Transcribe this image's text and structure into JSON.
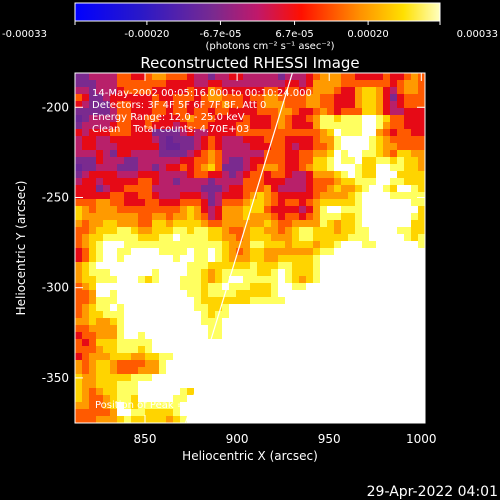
{
  "colorbar": {
    "tick_labels": [
      "-0.00033",
      "-0.00020",
      "-6.7e-05",
      "6.7e-05",
      "0.00020",
      "0.00033"
    ],
    "tick_values": [
      -0.00033,
      -0.0002,
      -6.7e-05,
      6.7e-05,
      0.0002,
      0.00033
    ],
    "range": [
      -0.00033,
      0.00033
    ],
    "units_label": "(photons cm⁻² s⁻¹ asec⁻²)"
  },
  "chart_data": {
    "type": "heatmap",
    "title": "Reconstructed RHESSI Image",
    "xlabel": "Heliocentric X (arcsec)",
    "ylabel": "Heliocentric Y (arcsec)",
    "xlim": [
      812,
      1002
    ],
    "ylim": [
      -375,
      -181
    ],
    "x_ticks": [
      850,
      900,
      950,
      1000
    ],
    "y_ticks": [
      -200,
      -250,
      -300,
      -350
    ],
    "limb_line": [
      [
        872,
        -375
      ],
      [
        930,
        -181
      ]
    ],
    "peak_position": [
      997,
      -335
    ],
    "colormap": [
      "#0028ff",
      "#2a16c8",
      "#4b1e9a",
      "#6a2596",
      "#7a2a8f",
      "#b8206a",
      "#e60a16",
      "#ff5a00",
      "#ff9a00",
      "#ffd400",
      "#ffff60",
      "#ffffff"
    ]
  },
  "annotations": {
    "line1": "14-May-2002 00:05:16.000 to 00:10:24.000",
    "line2": "Detectors: 3F 4F 5F 6F 7F 8F, Att 0",
    "line3": "Energy Range: 12.0 - 25.0 keV",
    "line4": "Clean    Total counts: 4.70E+03",
    "peak": "Position of Peak = [997,-335]"
  },
  "footer": {
    "timestamp": "29-Apr-2022 04:01"
  }
}
